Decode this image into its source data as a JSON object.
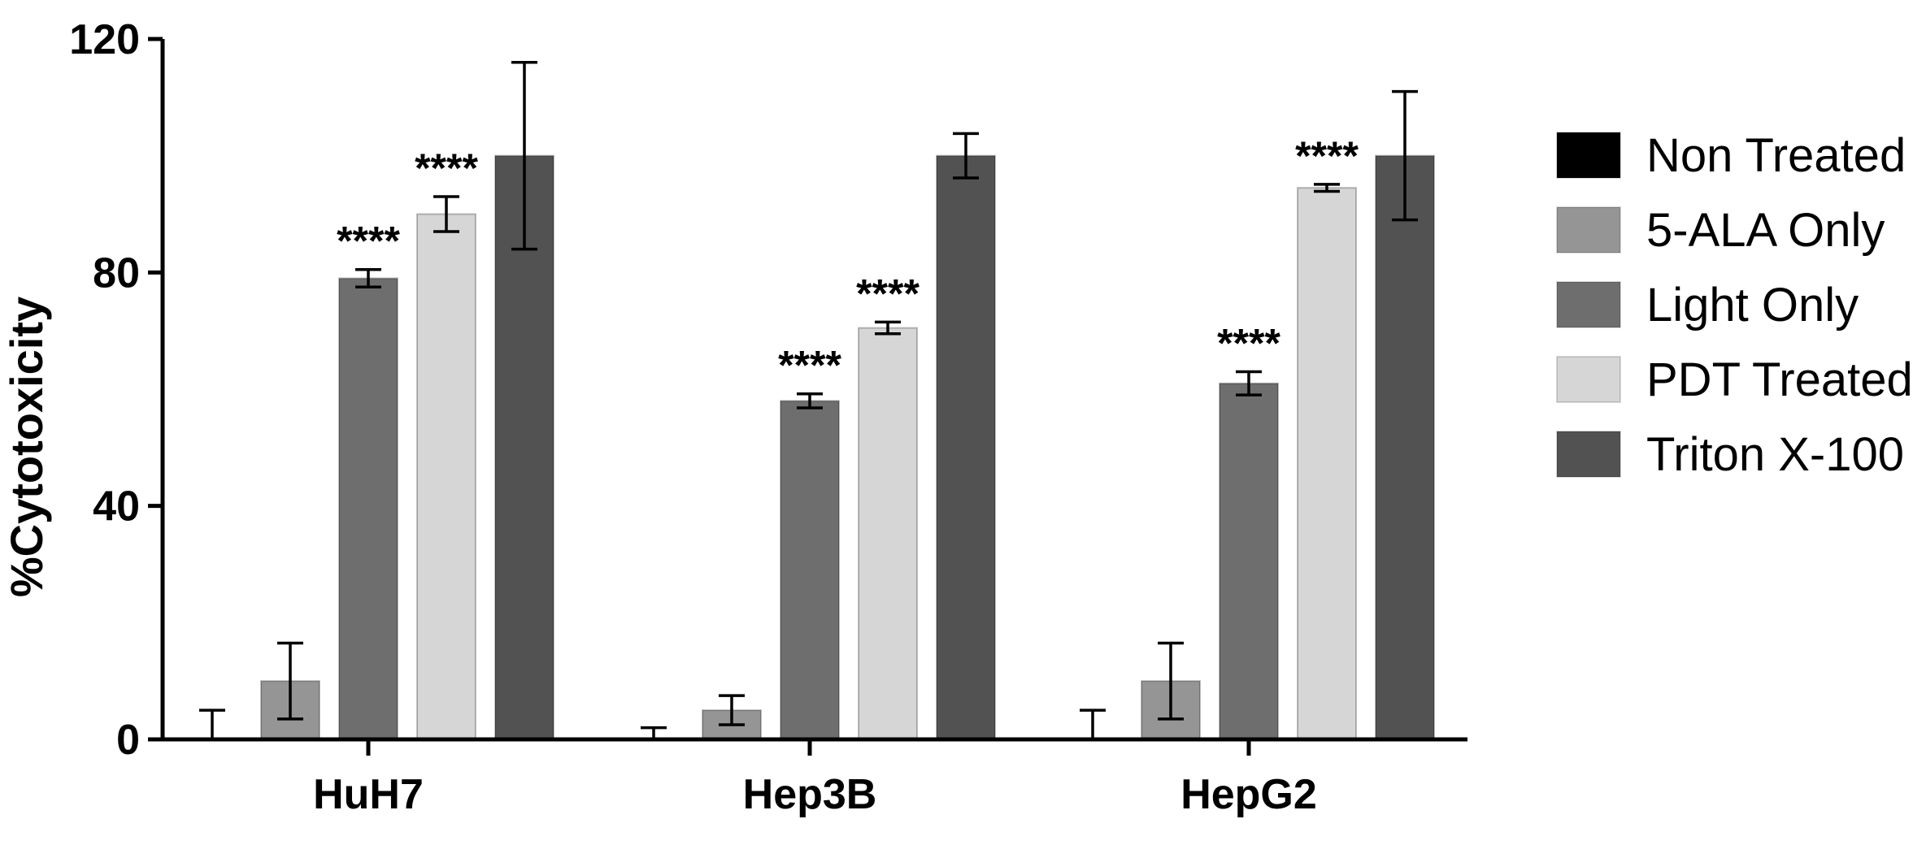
{
  "chart_data": {
    "type": "bar",
    "title": "",
    "xlabel": "",
    "ylabel": "%Cytotoxicity",
    "ylim": [
      0,
      120
    ],
    "yticks": [
      "0",
      "40",
      "80",
      "120"
    ],
    "categories": [
      "HuH7",
      "Hep3B",
      "HepG2"
    ],
    "series": [
      {
        "name": "Non Treated",
        "color": "#000000",
        "values": [
          0,
          0,
          0
        ],
        "errors": [
          5,
          2,
          5
        ],
        "significance": [
          "",
          "",
          ""
        ]
      },
      {
        "name": "5-ALA Only",
        "color": "#959595",
        "values": [
          10,
          5,
          10
        ],
        "errors": [
          6.5,
          2.5,
          6.5
        ],
        "significance": [
          "",
          "",
          ""
        ]
      },
      {
        "name": "Light Only",
        "color": "#6e6e6e",
        "values": [
          79,
          58,
          61
        ],
        "errors": [
          1.5,
          1.2,
          2
        ],
        "significance": [
          "****",
          "****",
          "****"
        ]
      },
      {
        "name": "PDT Treated",
        "color": "#d6d6d6",
        "values": [
          90,
          70.5,
          94.5
        ],
        "errors": [
          3,
          1,
          0.6
        ],
        "significance": [
          "****",
          "****",
          "****"
        ]
      },
      {
        "name": "Triton X-100",
        "color": "#525252",
        "values": [
          100,
          100,
          100
        ],
        "errors": [
          16,
          3.8,
          11
        ],
        "significance": [
          "",
          "",
          ""
        ]
      }
    ],
    "legend": "right",
    "grid": false
  }
}
